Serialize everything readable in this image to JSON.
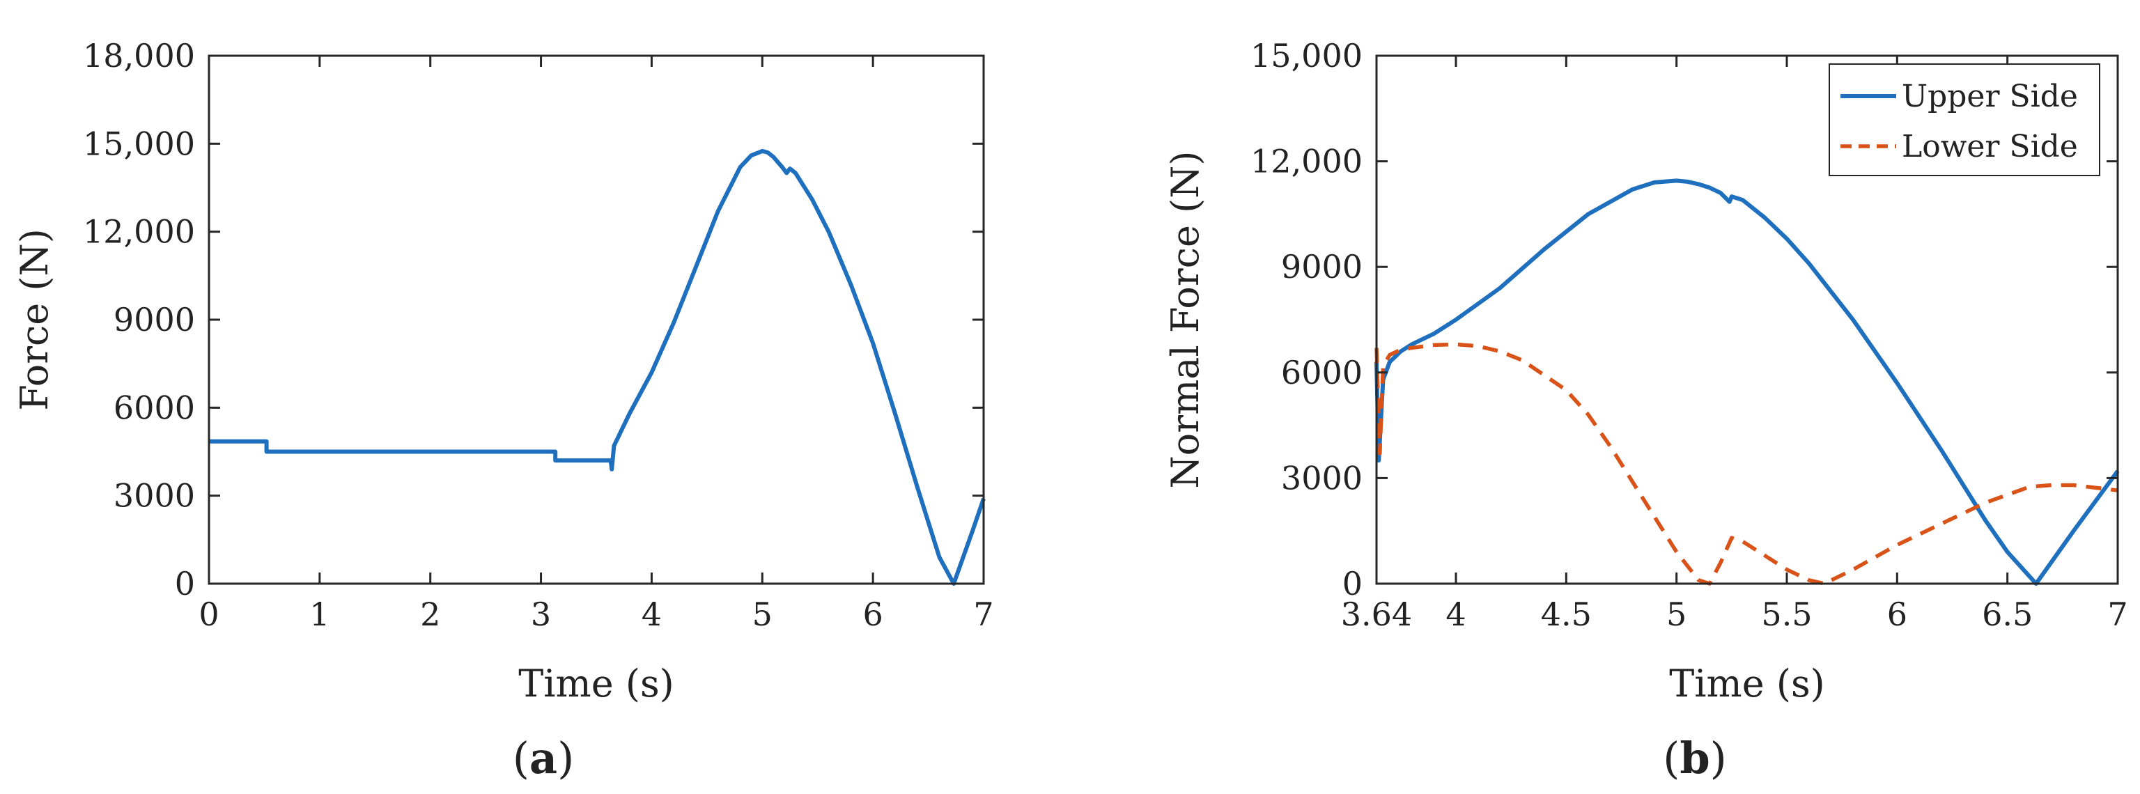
{
  "chart_data": [
    {
      "panel": "a",
      "type": "line",
      "xlabel": "Time (s)",
      "ylabel": "Force (N)",
      "xlim": [
        0,
        7
      ],
      "ylim": [
        0,
        18000
      ],
      "xticks": [
        0,
        1,
        2,
        3,
        4,
        5,
        6,
        7
      ],
      "xtick_labels": [
        "0",
        "1",
        "2",
        "3",
        "4",
        "5",
        "6",
        "7"
      ],
      "yticks": [
        0,
        3000,
        6000,
        9000,
        12000,
        15000,
        18000
      ],
      "ytick_labels": [
        "0",
        "3000",
        "6000",
        "9000",
        "12,000",
        "15,000",
        "18,000"
      ],
      "grid": false,
      "series": [
        {
          "color": "#1f6fbf",
          "dash": "solid",
          "x": [
            0,
            0.52,
            0.52,
            3.13,
            3.13,
            3.63,
            3.64,
            3.66,
            3.8,
            4.0,
            4.2,
            4.4,
            4.6,
            4.8,
            4.9,
            5.0,
            5.05,
            5.1,
            5.18,
            5.22,
            5.25,
            5.3,
            5.45,
            5.6,
            5.8,
            6.0,
            6.2,
            6.4,
            6.6,
            6.73,
            6.9,
            7.0
          ],
          "y": [
            4850,
            4850,
            4500,
            4500,
            4200,
            4200,
            3900,
            4700,
            5800,
            7200,
            8900,
            10800,
            12700,
            14200,
            14600,
            14750,
            14700,
            14550,
            14200,
            14000,
            14150,
            14000,
            13100,
            12000,
            10200,
            8200,
            5800,
            3300,
            900,
            0,
            1800,
            2900
          ]
        }
      ]
    },
    {
      "panel": "b",
      "type": "line",
      "xlabel": "Time (s)",
      "ylabel": "Normal Force (N)",
      "xlim": [
        3.64,
        7
      ],
      "ylim": [
        0,
        15000
      ],
      "xticks": [
        3.64,
        4,
        4.5,
        5,
        5.5,
        6,
        6.5,
        7
      ],
      "xtick_labels": [
        "3.64",
        "4",
        "4.5",
        "5",
        "5.5",
        "6",
        "6.5",
        "7"
      ],
      "yticks": [
        0,
        3000,
        6000,
        9000,
        12000,
        15000
      ],
      "ytick_labels": [
        "0",
        "3000",
        "6000",
        "9000",
        "12,000",
        "15,000"
      ],
      "grid": false,
      "legend_position": "top-right",
      "series": [
        {
          "name": "Upper Side",
          "color": "#1f6fbf",
          "dash": "solid",
          "x": [
            3.64,
            3.65,
            3.67,
            3.7,
            3.75,
            3.8,
            3.9,
            4.0,
            4.2,
            4.4,
            4.6,
            4.8,
            4.9,
            5.0,
            5.05,
            5.1,
            5.15,
            5.2,
            5.24,
            5.25,
            5.3,
            5.4,
            5.5,
            5.6,
            5.8,
            6.0,
            6.2,
            6.4,
            6.5,
            6.63,
            6.8,
            7.0
          ],
          "y": [
            6300,
            3500,
            5800,
            6300,
            6600,
            6800,
            7100,
            7500,
            8400,
            9500,
            10500,
            11200,
            11400,
            11450,
            11420,
            11350,
            11250,
            11100,
            10850,
            11000,
            10900,
            10400,
            9800,
            9100,
            7500,
            5700,
            3800,
            1800,
            900,
            0,
            1500,
            3200
          ]
        },
        {
          "name": "Lower Side",
          "color": "#d95319",
          "dash": "dashed",
          "x": [
            3.64,
            3.655,
            3.67,
            3.7,
            3.75,
            3.8,
            3.9,
            4.0,
            4.1,
            4.2,
            4.3,
            4.5,
            4.6,
            4.7,
            4.8,
            4.9,
            5.0,
            5.1,
            5.15,
            5.2,
            5.25,
            5.3,
            5.4,
            5.5,
            5.6,
            5.67,
            5.8,
            6.0,
            6.2,
            6.4,
            6.6,
            6.7,
            6.8,
            7.0
          ],
          "y": [
            6700,
            3700,
            6200,
            6500,
            6650,
            6700,
            6780,
            6800,
            6750,
            6600,
            6350,
            5500,
            4800,
            3900,
            2900,
            1900,
            900,
            100,
            0,
            600,
            1300,
            1200,
            800,
            400,
            100,
            0,
            400,
            1100,
            1700,
            2300,
            2750,
            2800,
            2800,
            2650
          ]
        }
      ]
    }
  ],
  "panel_labels": [
    {
      "open": "(",
      "letter": "a",
      "close": ")"
    },
    {
      "open": "(",
      "letter": "b",
      "close": ")"
    }
  ]
}
